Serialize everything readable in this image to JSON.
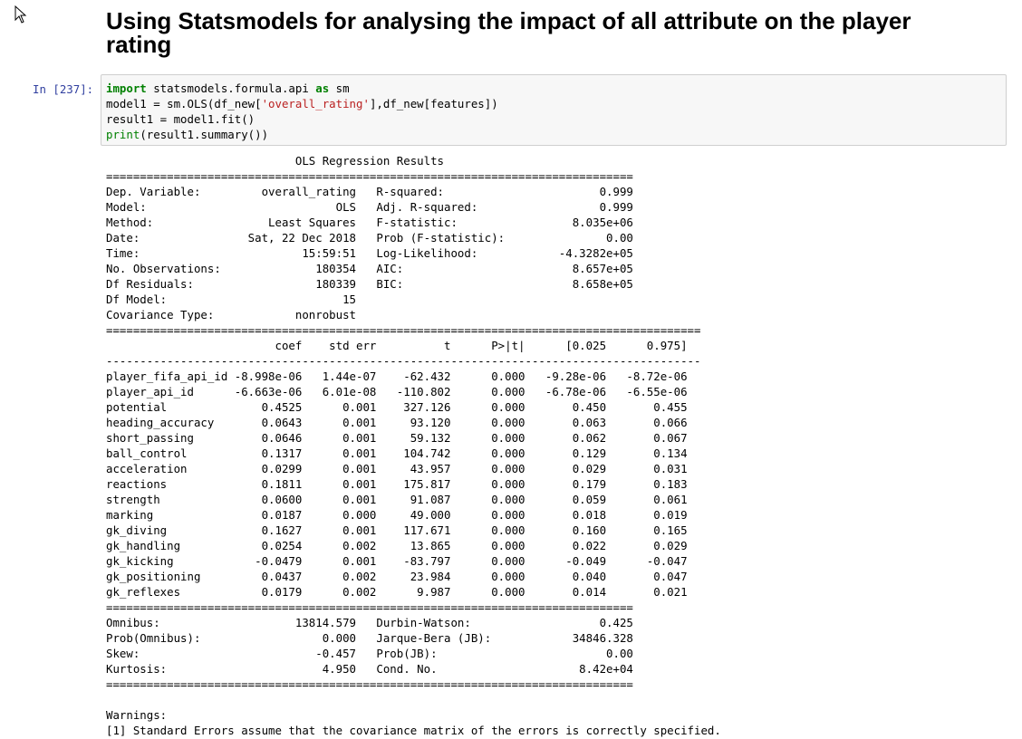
{
  "heading": "Using Statsmodels for analysing the impact of all attribute on the player rating",
  "cell": {
    "prompt": "In [237]:",
    "code_lines": [
      [
        {
          "t": "import",
          "c": "kw"
        },
        {
          "t": " statsmodels.formula.api "
        },
        {
          "t": "as",
          "c": "kw"
        },
        {
          "t": " sm"
        }
      ],
      [
        {
          "t": "model1 = sm.OLS(df_new["
        },
        {
          "t": "'overall_rating'",
          "c": "str"
        },
        {
          "t": "],df_new[features])"
        }
      ],
      [
        {
          "t": "result1 = model1.fit()"
        }
      ],
      [
        {
          "t": "print",
          "c": "bi"
        },
        {
          "t": "(result1.summary())"
        }
      ]
    ]
  },
  "output_lines": [
    "                            OLS Regression Results                            ",
    "==============================================================================",
    "Dep. Variable:         overall_rating   R-squared:                       0.999",
    "Model:                            OLS   Adj. R-squared:                  0.999",
    "Method:                 Least Squares   F-statistic:                 8.035e+06",
    "Date:                Sat, 22 Dec 2018   Prob (F-statistic):               0.00",
    "Time:                        15:59:51   Log-Likelihood:            -4.3282e+05",
    "No. Observations:              180354   AIC:                         8.657e+05",
    "Df Residuals:                  180339   BIC:                         8.658e+05",
    "Df Model:                          15                                         ",
    "Covariance Type:            nonrobust                                         ",
    "========================================================================================",
    "                         coef    std err          t      P>|t|      [0.025      0.975]",
    "----------------------------------------------------------------------------------------",
    "player_fifa_api_id -8.998e-06   1.44e-07    -62.432      0.000   -9.28e-06   -8.72e-06",
    "player_api_id      -6.663e-06   6.01e-08   -110.802      0.000   -6.78e-06   -6.55e-06",
    "potential              0.4525      0.001    327.126      0.000       0.450       0.455",
    "heading_accuracy       0.0643      0.001     93.120      0.000       0.063       0.066",
    "short_passing          0.0646      0.001     59.132      0.000       0.062       0.067",
    "ball_control           0.1317      0.001    104.742      0.000       0.129       0.134",
    "acceleration           0.0299      0.001     43.957      0.000       0.029       0.031",
    "reactions              0.1811      0.001    175.817      0.000       0.179       0.183",
    "strength               0.0600      0.001     91.087      0.000       0.059       0.061",
    "marking                0.0187      0.000     49.000      0.000       0.018       0.019",
    "gk_diving              0.1627      0.001    117.671      0.000       0.160       0.165",
    "gk_handling            0.0254      0.002     13.865      0.000       0.022       0.029",
    "gk_kicking            -0.0479      0.001    -83.797      0.000      -0.049      -0.047",
    "gk_positioning         0.0437      0.002     23.984      0.000       0.040       0.047",
    "gk_reflexes            0.0179      0.002      9.987      0.000       0.014       0.021",
    "==============================================================================",
    "Omnibus:                    13814.579   Durbin-Watson:                   0.425",
    "Prob(Omnibus):                  0.000   Jarque-Bera (JB):            34846.328",
    "Skew:                          -0.457   Prob(JB):                         0.00",
    "Kurtosis:                       4.950   Cond. No.                     8.42e+04",
    "==============================================================================",
    "",
    "Warnings:",
    "[1] Standard Errors assume that the covariance matrix of the errors is correctly specified."
  ]
}
